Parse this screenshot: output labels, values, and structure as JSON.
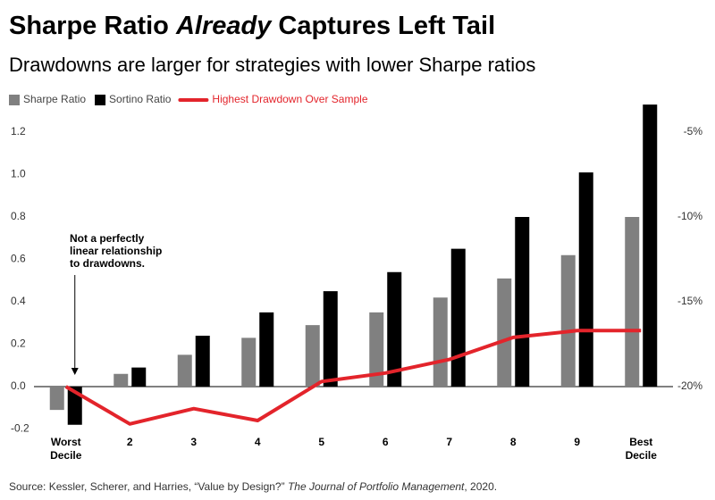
{
  "chart_data": {
    "type": "bar_line",
    "title_parts": [
      "Sharpe Ratio ",
      "Already",
      " Captures Left Tail"
    ],
    "subtitle": "Drawdowns are larger for strategies with lower Sharpe ratios",
    "categories": [
      "Worst Decile",
      "2",
      "3",
      "4",
      "5",
      "6",
      "7",
      "8",
      "9",
      "Best Decile"
    ],
    "series": [
      {
        "name": "Sharpe Ratio",
        "color": "#808080",
        "kind": "bar",
        "values": [
          -0.11,
          0.06,
          0.15,
          0.23,
          0.29,
          0.35,
          0.42,
          0.51,
          0.62,
          0.8
        ]
      },
      {
        "name": "Sortino Ratio",
        "color": "#000000",
        "kind": "bar",
        "values": [
          -0.18,
          0.09,
          0.24,
          0.35,
          0.45,
          0.54,
          0.65,
          0.8,
          1.01,
          1.33
        ]
      },
      {
        "name": "Highest Drawdown Over Sample",
        "color": "#e3242b",
        "kind": "line",
        "axis": "y2",
        "values": [
          -20,
          -22.2,
          -21.3,
          -22.0,
          -19.7,
          -19.2,
          -18.4,
          -17.1,
          -16.7,
          -16.7
        ]
      }
    ],
    "ylim": [
      -0.24,
      1.36
    ],
    "yticks": [
      -0.2,
      {
        "value": 0,
        "label": "0.0"
      },
      0.2,
      0.4,
      0.6,
      0.8,
      {
        "value": 1,
        "label": "1.0"
      },
      1.2
    ],
    "y2lim": [
      -23,
      -3
    ],
    "y2ticks": [
      {
        "value": -20,
        "label": "-20%"
      },
      {
        "value": -15,
        "label": "-15%"
      },
      {
        "value": -10,
        "label": "-10%"
      },
      {
        "value": -5,
        "label": "-5%"
      }
    ],
    "annotation": {
      "lines": [
        "Not a perfectly",
        "linear relationship",
        "to drawdowns."
      ],
      "category": 0
    },
    "legend": "top-left",
    "source_parts": [
      "Source: Kessler, Scherer, and Harries, “Value by Design?” ",
      "The Journal of Portfolio Management",
      ", 2020."
    ]
  }
}
